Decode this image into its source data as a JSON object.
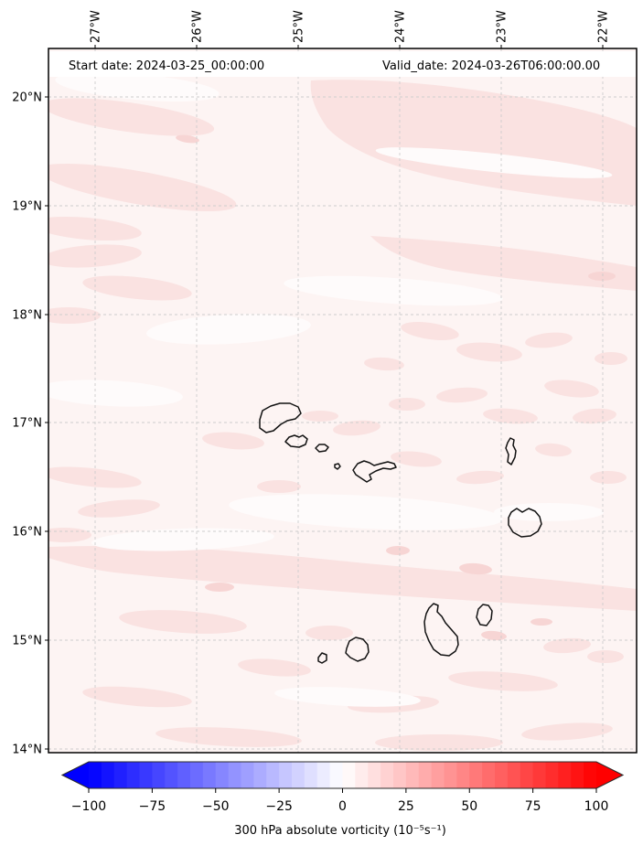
{
  "title_band": {
    "start_date": "Start date: 2024-03-25_00:00:00",
    "valid_date": "Valid_date: 2024-03-26T06:00:00.00"
  },
  "axes": {
    "top_tick_labels": [
      "27°W",
      "26°W",
      "25°W",
      "24°W",
      "23°W",
      "22°W"
    ],
    "left_tick_labels": [
      "20°N",
      "19°N",
      "18°N",
      "17°N",
      "16°N",
      "15°N",
      "14°N"
    ]
  },
  "colorbar": {
    "label": "300 hPa absolute vorticity (10⁻⁵s⁻¹)",
    "tick_labels": [
      "−100",
      "−75",
      "−50",
      "−25",
      "0",
      "25",
      "50",
      "75",
      "100"
    ],
    "tick_values": [
      -100,
      -75,
      -50,
      -25,
      0,
      25,
      50,
      75,
      100
    ],
    "min": -100,
    "max": 100,
    "level_step": 5,
    "colormap": "bwr",
    "extend": "both",
    "color_left_extend": "#0000ff",
    "color_right_extend": "#ff0000"
  },
  "chart_data": {
    "type": "heatmap",
    "title": "",
    "annotation_left": "Start date: 2024-03-25_00:00:00",
    "annotation_right": "Valid_date: 2024-03-26T06:00:00.00",
    "x_axis": {
      "tick_labels": [
        "27°W",
        "26°W",
        "25°W",
        "24°W",
        "23°W",
        "22°W"
      ],
      "range_deg_west": [
        27.46,
        21.67
      ],
      "tick_label_rotation_deg": 90
    },
    "y_axis": {
      "tick_labels": [
        "20°N",
        "19°N",
        "18°N",
        "17°N",
        "16°N",
        "15°N",
        "14°N"
      ],
      "range_deg_north": [
        13.91,
        20.45
      ]
    },
    "colorbar_label": "300 hPa absolute vorticity (10⁻⁵s⁻¹)",
    "colorbar_range": [
      -100,
      100
    ],
    "colorbar_ticks": [
      -100,
      -75,
      -50,
      -25,
      0,
      25,
      50,
      75,
      100
    ],
    "colorbar_levels_step": 5,
    "field_values_visible_range": [
      0,
      15
    ],
    "field_description": "Pale pink shading (≈0–15 ×10⁻⁵ s⁻¹) over the whole domain with lighter near-white and slightly darker pink patches; black coastlines of the Cape Verde islands",
    "grid": "dashed 1° latitude/longitude graticule",
    "legend": "none"
  }
}
